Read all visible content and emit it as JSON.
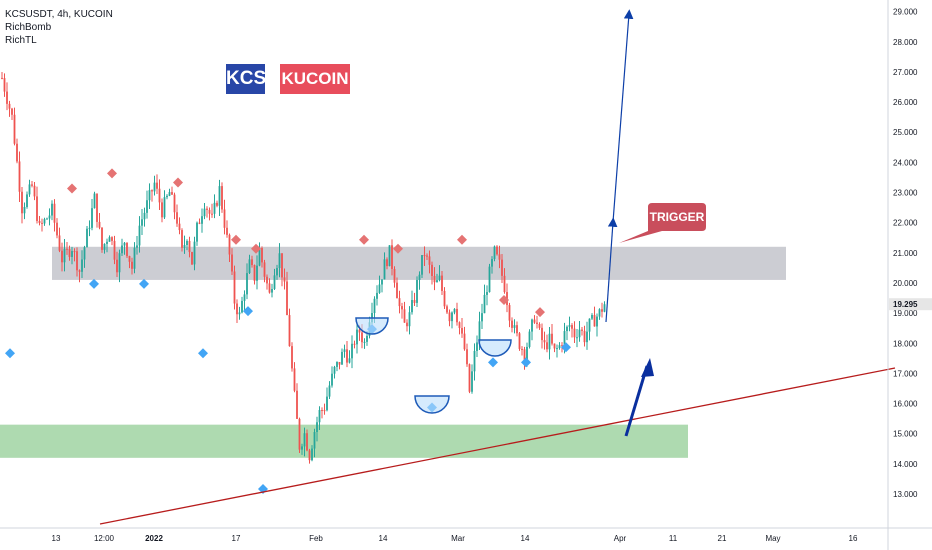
{
  "legend": {
    "symbol_line": "KCSUSDT, 4h, KUCOIN",
    "indicator_1": "RichBomb",
    "indicator_2": "RichTL"
  },
  "badges": {
    "kcs": "KCS",
    "kucoin": "KUCOIN"
  },
  "colors": {
    "up": "#26a69a",
    "down": "#ef5350",
    "resistance_zone": "#c3c4cb",
    "support_zone": "#a5d6a7",
    "trendline": "#b71c1c",
    "projection": "#0d3fa8",
    "top_marker": "#e57373",
    "bottom_marker": "#42a5f5",
    "callout": "#c94e5c"
  },
  "chart_data": {
    "type": "candlestick",
    "symbol": "KCSUSDT",
    "interval": "4h",
    "exchange": "KUCOIN",
    "current_price": "19.295",
    "ylim": [
      12.5,
      29.3
    ],
    "y_ticks": [
      "13.000",
      "14.000",
      "15.000",
      "16.000",
      "17.000",
      "18.000",
      "19.000",
      "20.000",
      "21.000",
      "22.000",
      "23.000",
      "24.000",
      "25.000",
      "26.000",
      "27.000",
      "28.000",
      "29.000"
    ],
    "x_ticks": [
      "13",
      "12:00",
      "2022",
      "17",
      "Feb",
      "14",
      "Mar",
      "14",
      "Apr",
      "11",
      "21",
      "May",
      "16"
    ],
    "price_path": [
      [
        0,
        26.8
      ],
      [
        4,
        25.5
      ],
      [
        8,
        22.5
      ],
      [
        12,
        23.2
      ],
      [
        15,
        21.8
      ],
      [
        20,
        22.4
      ],
      [
        24,
        20.8
      ],
      [
        28,
        21.2
      ],
      [
        31,
        20.4
      ],
      [
        34,
        21.6
      ],
      [
        37,
        22.8
      ],
      [
        40,
        21.1
      ],
      [
        43,
        21.7
      ],
      [
        46,
        20.6
      ],
      [
        49,
        21.4
      ],
      [
        52,
        20.5
      ],
      [
        55,
        21.9
      ],
      [
        58,
        22.6
      ],
      [
        61,
        23.3
      ],
      [
        64,
        22.4
      ],
      [
        67,
        23.0
      ],
      [
        70,
        22.1
      ],
      [
        72,
        21.0
      ],
      [
        74,
        21.6
      ],
      [
        76,
        20.7
      ],
      [
        78,
        21.8
      ],
      [
        81,
        22.7
      ],
      [
        84,
        22.1
      ],
      [
        87,
        23.1
      ],
      [
        89,
        22.0
      ],
      [
        91,
        20.9
      ],
      [
        93,
        19.4
      ],
      [
        95,
        18.9
      ],
      [
        97,
        19.8
      ],
      [
        99,
        20.6
      ],
      [
        101,
        20.2
      ],
      [
        103,
        21.1
      ],
      [
        105,
        20.3
      ],
      [
        107,
        19.6
      ],
      [
        109,
        20.5
      ],
      [
        111,
        20.9
      ],
      [
        113,
        19.8
      ],
      [
        115,
        18.0
      ],
      [
        117,
        16.2
      ],
      [
        119,
        14.6
      ],
      [
        121,
        15.0
      ],
      [
        123,
        14.3
      ],
      [
        125,
        15.1
      ],
      [
        127,
        15.7
      ],
      [
        129,
        15.9
      ],
      [
        131,
        16.6
      ],
      [
        133,
        17.1
      ],
      [
        135,
        17.4
      ],
      [
        137,
        17.8
      ],
      [
        139,
        17.4
      ],
      [
        141,
        18.1
      ],
      [
        143,
        18.4
      ],
      [
        145,
        18.0
      ],
      [
        147,
        18.9
      ],
      [
        149,
        19.6
      ],
      [
        151,
        20.0
      ],
      [
        153,
        20.6
      ],
      [
        155,
        21.0
      ],
      [
        157,
        20.2
      ],
      [
        159,
        19.2
      ],
      [
        161,
        18.6
      ],
      [
        163,
        18.9
      ],
      [
        165,
        19.5
      ],
      [
        167,
        20.4
      ],
      [
        169,
        21.0
      ],
      [
        171,
        20.5
      ],
      [
        173,
        19.9
      ],
      [
        175,
        20.1
      ],
      [
        177,
        19.4
      ],
      [
        179,
        18.9
      ],
      [
        181,
        19.3
      ],
      [
        183,
        18.5
      ],
      [
        185,
        17.8
      ],
      [
        187,
        16.4
      ],
      [
        189,
        17.6
      ],
      [
        191,
        18.6
      ],
      [
        193,
        19.5
      ],
      [
        195,
        20.3
      ],
      [
        197,
        21.0
      ],
      [
        199,
        20.6
      ],
      [
        201,
        19.9
      ],
      [
        203,
        19.0
      ],
      [
        205,
        18.4
      ],
      [
        207,
        18.0
      ],
      [
        209,
        17.7
      ],
      [
        211,
        18.2
      ],
      [
        213,
        18.9
      ],
      [
        215,
        18.3
      ],
      [
        217,
        17.9
      ],
      [
        219,
        18.1
      ],
      [
        221,
        17.7
      ],
      [
        223,
        17.9
      ],
      [
        225,
        18.3
      ],
      [
        227,
        18.6
      ],
      [
        229,
        18.3
      ],
      [
        231,
        18.5
      ],
      [
        233,
        18.2
      ],
      [
        235,
        18.6
      ],
      [
        237,
        18.8
      ],
      [
        239,
        19.0
      ],
      [
        241,
        19.3
      ]
    ],
    "zones": [
      {
        "name": "resistance",
        "from": 20.1,
        "to": 21.2
      },
      {
        "name": "support",
        "from": 14.2,
        "to": 15.3
      }
    ],
    "markers": {
      "tops": [
        23.0,
        23.5,
        23.2,
        21.3,
        21.0,
        21.3,
        21.0,
        21.3,
        19.3,
        18.9
      ],
      "bottoms": [
        17.8,
        20.1,
        20.1,
        17.8,
        19.2,
        13.3,
        18.6,
        16.0,
        17.5,
        17.5,
        18.0
      ]
    },
    "annotations": [
      {
        "type": "callout",
        "text": "TRIGGER"
      },
      {
        "type": "arrow",
        "label": ""
      },
      {
        "type": "arrow",
        "label": ""
      }
    ]
  }
}
